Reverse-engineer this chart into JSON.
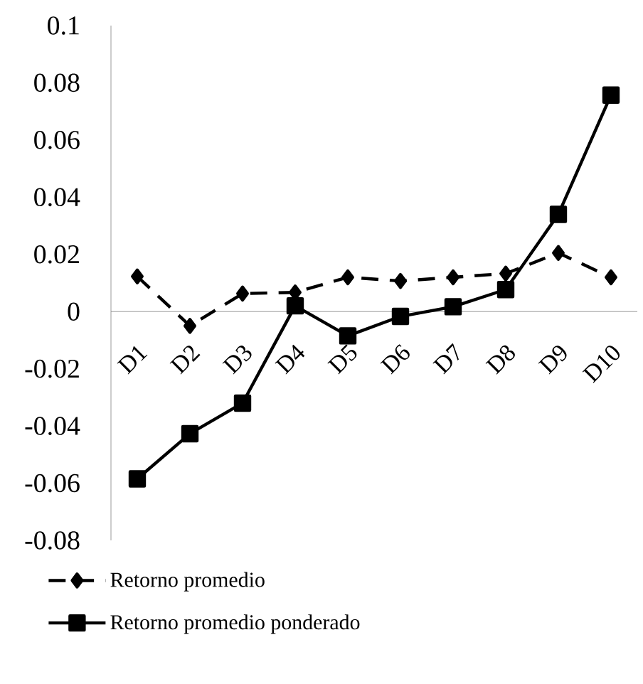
{
  "chart_data": {
    "type": "line",
    "categories": [
      "D1",
      "D2",
      "D3",
      "D4",
      "D5",
      "D6",
      "D7",
      "D8",
      "D9",
      "D10"
    ],
    "series": [
      {
        "name": "Retorno promedio",
        "color": "#000000",
        "line_style": "dashed",
        "marker": "diamond",
        "values": [
          0.0123,
          -0.005,
          0.0063,
          0.0067,
          0.012,
          0.0107,
          0.012,
          0.0133,
          0.0205,
          0.012
        ]
      },
      {
        "name": "Retorno promedio ponderado",
        "color": "#000000",
        "line_style": "solid",
        "marker": "square",
        "values": [
          -0.0585,
          -0.0427,
          -0.032,
          0.002,
          -0.0085,
          -0.0017,
          0.0017,
          0.0077,
          0.034,
          0.0757
        ]
      }
    ],
    "ylim": [
      -0.08,
      0.1
    ],
    "yticks": [
      -0.08,
      -0.06,
      -0.04,
      -0.02,
      0,
      0.02,
      0.04,
      0.06,
      0.08,
      0.1
    ],
    "legend": "bottom"
  }
}
